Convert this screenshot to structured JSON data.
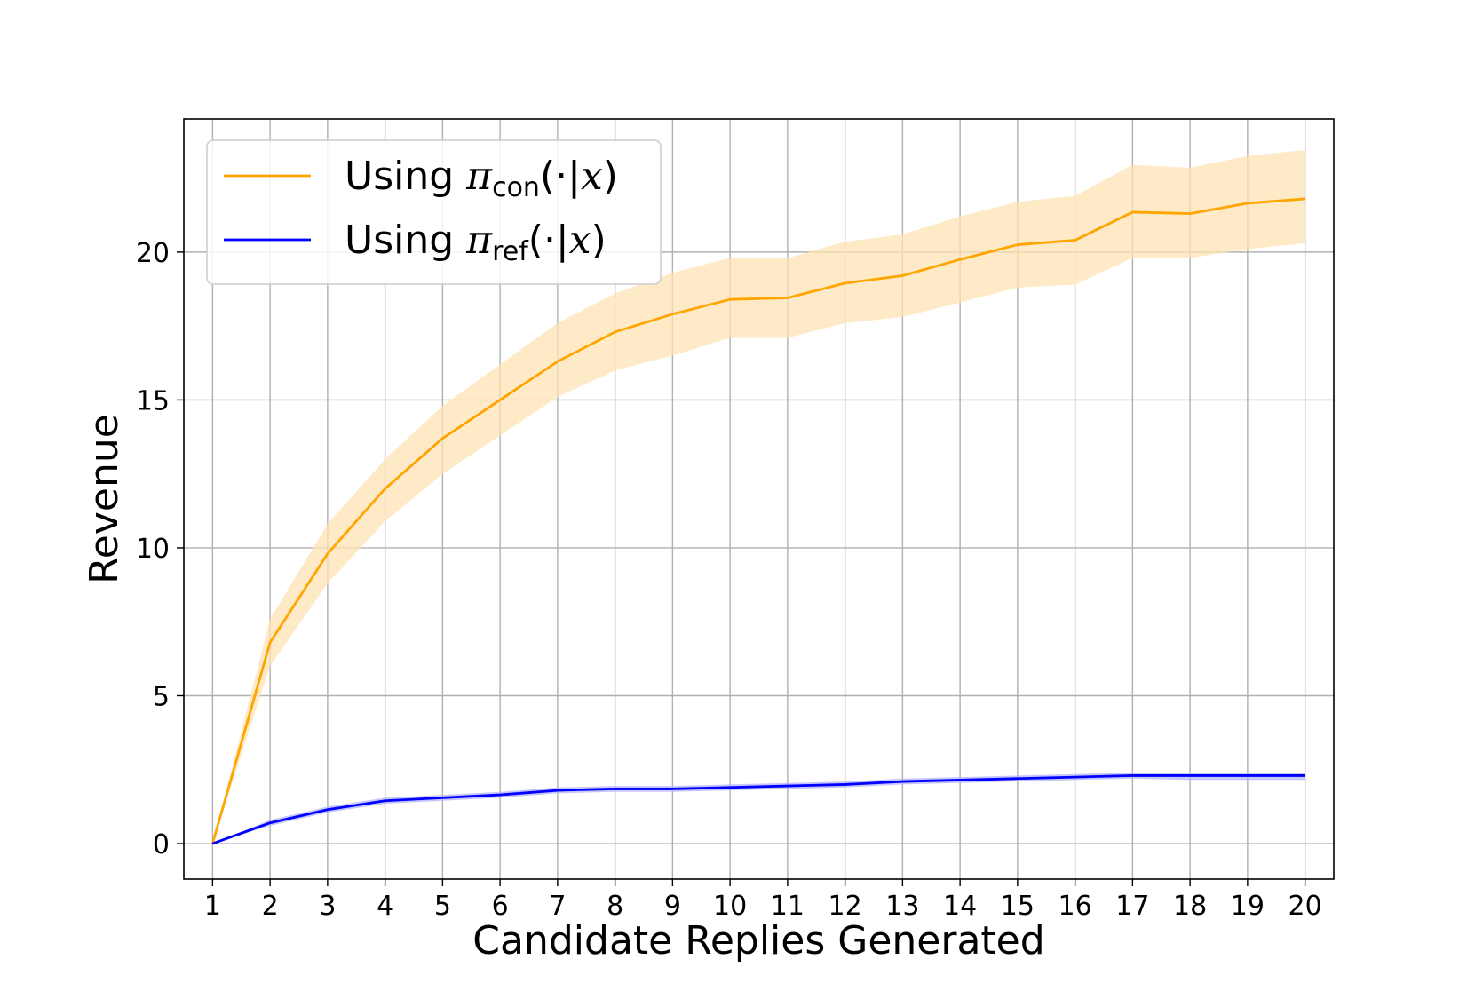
{
  "chart_data": {
    "type": "line",
    "title": "",
    "xlabel": "Candidate Replies Generated",
    "ylabel": "Revenue",
    "x": [
      1,
      2,
      3,
      4,
      5,
      6,
      7,
      8,
      9,
      10,
      11,
      12,
      13,
      14,
      15,
      16,
      17,
      18,
      19,
      20
    ],
    "xlim": [
      0.5,
      20.5
    ],
    "ylim": [
      -1.2,
      24.5
    ],
    "yticks": [
      0,
      5,
      10,
      15,
      20
    ],
    "grid": true,
    "legend_position": "top-left",
    "series": [
      {
        "name_text": "Using ",
        "name_symbol": "π",
        "name_sub": "con",
        "name_rest": "(·|",
        "name_var": "x",
        "name_close": ")",
        "color": "#ffa500",
        "band_color": "#fde3b3",
        "values": [
          0.0,
          6.8,
          9.8,
          12.0,
          13.7,
          15.0,
          16.3,
          17.3,
          17.9,
          18.4,
          18.45,
          18.95,
          19.2,
          19.75,
          20.25,
          20.4,
          21.35,
          21.3,
          21.65,
          21.8
        ],
        "lower": [
          0.0,
          6.0,
          8.8,
          10.9,
          12.5,
          13.8,
          15.1,
          16.0,
          16.5,
          17.1,
          17.1,
          17.6,
          17.8,
          18.3,
          18.8,
          18.9,
          19.8,
          19.8,
          20.1,
          20.3
        ],
        "upper": [
          0.0,
          7.6,
          10.8,
          13.0,
          14.8,
          16.2,
          17.6,
          18.6,
          19.3,
          19.8,
          19.8,
          20.35,
          20.6,
          21.2,
          21.7,
          21.9,
          22.95,
          22.85,
          23.25,
          23.45
        ]
      },
      {
        "name_text": "Using ",
        "name_symbol": "π",
        "name_sub": "ref",
        "name_rest": "(·|",
        "name_var": "x",
        "name_close": ")",
        "color": "#0000ff",
        "band_color": "#b3b3fb",
        "values": [
          0.0,
          0.7,
          1.15,
          1.45,
          1.55,
          1.65,
          1.8,
          1.85,
          1.85,
          1.9,
          1.95,
          2.0,
          2.1,
          2.15,
          2.2,
          2.25,
          2.3,
          2.3,
          2.3,
          2.3
        ],
        "lower": [
          0.0,
          0.6,
          1.05,
          1.35,
          1.45,
          1.55,
          1.7,
          1.75,
          1.75,
          1.8,
          1.85,
          1.9,
          2.0,
          2.05,
          2.1,
          2.15,
          2.2,
          2.15,
          2.15,
          2.15
        ],
        "upper": [
          0.0,
          0.8,
          1.25,
          1.55,
          1.65,
          1.75,
          1.9,
          1.95,
          1.95,
          2.0,
          2.05,
          2.1,
          2.2,
          2.25,
          2.3,
          2.35,
          2.4,
          2.4,
          2.4,
          2.4
        ]
      }
    ]
  }
}
